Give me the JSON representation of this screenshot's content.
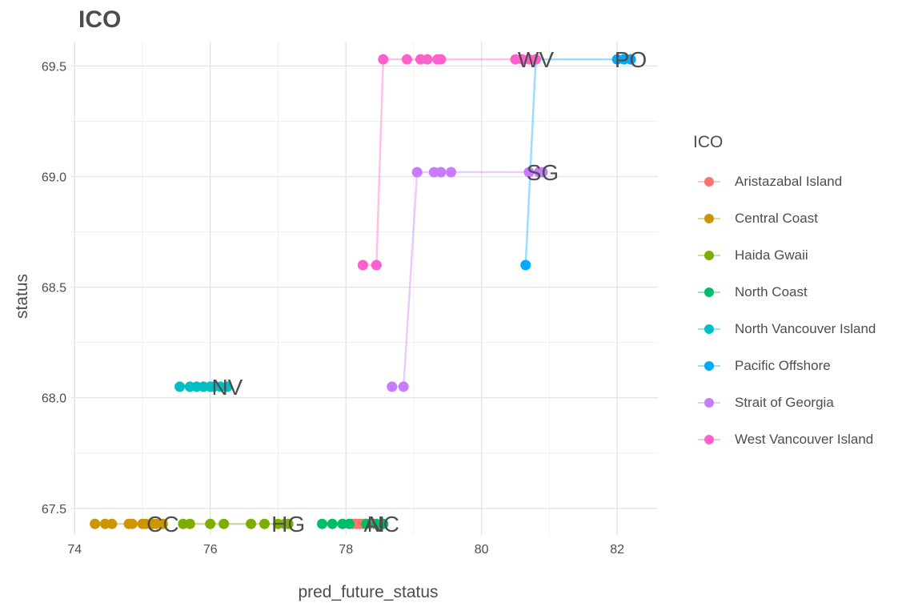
{
  "chart_data": {
    "type": "line",
    "title": "ICO",
    "xlabel": "pred_future_status",
    "ylabel": "status",
    "xlim": [
      73.95,
      82.6
    ],
    "ylim": [
      67.38,
      69.61
    ],
    "x_ticks": [
      74,
      76,
      78,
      80,
      82
    ],
    "y_ticks": [
      67.5,
      68.0,
      68.5,
      69.0,
      69.5
    ],
    "x_tick_labels": [
      "74",
      "76",
      "78",
      "80",
      "82"
    ],
    "y_tick_labels": [
      "67.5",
      "68.0",
      "68.5",
      "69.0",
      "69.5"
    ],
    "grid": true,
    "legend": {
      "title": "ICO",
      "position": "right"
    },
    "series": [
      {
        "name": "Aristazabal Island",
        "color": "#F8766D",
        "end_label": "AI",
        "points": [
          [
            78.1,
            67.43
          ],
          [
            78.15,
            67.43
          ],
          [
            78.2,
            67.43
          ],
          [
            78.25,
            67.43
          ],
          [
            78.3,
            67.43
          ],
          [
            78.35,
            67.43
          ],
          [
            78.42,
            67.43
          ]
        ]
      },
      {
        "name": "Central Coast",
        "color": "#CD9600",
        "end_label": "CC",
        "points": [
          [
            74.3,
            67.43
          ],
          [
            74.45,
            67.43
          ],
          [
            74.55,
            67.43
          ],
          [
            74.8,
            67.43
          ],
          [
            74.85,
            67.43
          ],
          [
            75.0,
            67.43
          ],
          [
            75.05,
            67.43
          ],
          [
            75.15,
            67.43
          ],
          [
            75.2,
            67.43
          ],
          [
            75.3,
            67.43
          ]
        ]
      },
      {
        "name": "Haida Gwaii",
        "color": "#7CAE00",
        "end_label": "HG",
        "points": [
          [
            75.6,
            67.43
          ],
          [
            75.7,
            67.43
          ],
          [
            76.0,
            67.43
          ],
          [
            76.2,
            67.43
          ],
          [
            76.6,
            67.43
          ],
          [
            76.8,
            67.43
          ],
          [
            77.0,
            67.43
          ],
          [
            77.1,
            67.43
          ],
          [
            77.15,
            67.43
          ]
        ]
      },
      {
        "name": "North Coast",
        "color": "#00BE67",
        "end_label": "NC",
        "points": [
          [
            77.65,
            67.43
          ],
          [
            77.8,
            67.43
          ],
          [
            77.95,
            67.43
          ],
          [
            78.05,
            67.43
          ],
          [
            78.3,
            67.43
          ],
          [
            78.45,
            67.43
          ],
          [
            78.55,
            67.43
          ]
        ]
      },
      {
        "name": "North Vancouver Island",
        "color": "#00BFC4",
        "end_label": "NV",
        "points": [
          [
            75.55,
            68.05
          ],
          [
            75.7,
            68.05
          ],
          [
            75.8,
            68.05
          ],
          [
            75.9,
            68.05
          ],
          [
            76.0,
            68.05
          ],
          [
            76.05,
            68.05
          ],
          [
            76.15,
            68.05
          ],
          [
            76.25,
            68.05
          ]
        ]
      },
      {
        "name": "Pacific Offshore",
        "color": "#00A9FF",
        "end_label": "PO",
        "points": [
          [
            80.65,
            68.6
          ],
          [
            80.8,
            69.53
          ],
          [
            82.0,
            69.53
          ],
          [
            82.1,
            69.53
          ],
          [
            82.2,
            69.53
          ]
        ]
      },
      {
        "name": "Strait of Georgia",
        "color": "#C77CFF",
        "end_label": "SG",
        "points": [
          [
            78.68,
            68.05
          ],
          [
            78.85,
            68.05
          ],
          [
            79.05,
            69.02
          ],
          [
            79.3,
            69.02
          ],
          [
            79.4,
            69.02
          ],
          [
            79.55,
            69.02
          ],
          [
            80.7,
            69.02
          ],
          [
            80.85,
            69.02
          ],
          [
            80.9,
            69.02
          ]
        ]
      },
      {
        "name": "West Vancouver Island",
        "color": "#FF61CC",
        "end_label": "WV",
        "points": [
          [
            78.25,
            68.6
          ],
          [
            78.45,
            68.6
          ],
          [
            78.55,
            69.53
          ],
          [
            78.9,
            69.53
          ],
          [
            79.1,
            69.53
          ],
          [
            79.2,
            69.53
          ],
          [
            79.35,
            69.53
          ],
          [
            79.4,
            69.53
          ],
          [
            80.5,
            69.53
          ],
          [
            80.6,
            69.53
          ],
          [
            80.7,
            69.53
          ],
          [
            80.8,
            69.53
          ]
        ]
      }
    ]
  }
}
